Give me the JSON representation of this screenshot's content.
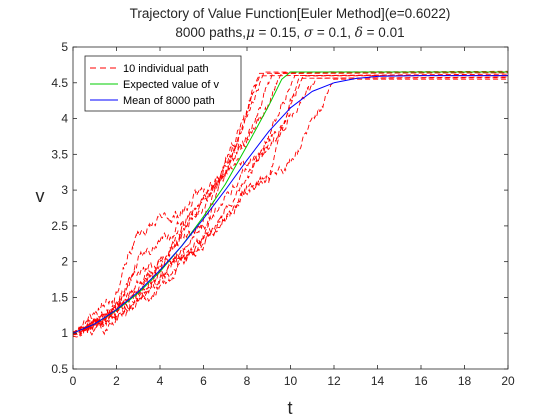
{
  "chart_data": {
    "type": "line",
    "title": "Trajectory of Value Function[Euler Method](e=0.6022)",
    "subtitle_parts": {
      "prefix": "8000 paths,",
      "mu_symbol": "μ",
      "mu_rest": " = 0.15, ",
      "sigma_symbol": "σ",
      "sigma_rest": " = 0.1, ",
      "delta_symbol": "δ",
      "delta_rest": " = 0.01"
    },
    "xlabel": "t",
    "ylabel": "v",
    "xlim": [
      0,
      20
    ],
    "ylim": [
      0.5,
      5
    ],
    "xticks": [
      "0",
      "2",
      "4",
      "6",
      "8",
      "10",
      "12",
      "14",
      "16",
      "18",
      "20"
    ],
    "yticks": [
      "0.5",
      "1",
      "1.5",
      "2",
      "2.5",
      "3",
      "3.5",
      "4",
      "4.5",
      "5"
    ],
    "grid": false,
    "legend_position": "top-left",
    "series": [
      {
        "name": "10 individual path",
        "color": "#ff0000",
        "style": "dashed",
        "paths": [
          {
            "seed": 11,
            "vol": 0.055,
            "anchors": [
              [
                0,
                1.0
              ],
              [
                2,
                1.35
              ],
              [
                4,
                2.0
              ],
              [
                6,
                2.6
              ],
              [
                7.5,
                3.6
              ],
              [
                8.6,
                4.65
              ]
            ],
            "end": 4.65
          },
          {
            "seed": 23,
            "vol": 0.06,
            "anchors": [
              [
                0,
                0.98
              ],
              [
                2,
                1.6
              ],
              [
                3,
                2.4
              ],
              [
                5,
                2.7
              ],
              [
                7,
                3.3
              ],
              [
                9,
                4.2
              ],
              [
                9.6,
                4.64
              ]
            ],
            "end": 4.64
          },
          {
            "seed": 37,
            "vol": 0.05,
            "anchors": [
              [
                0,
                0.95
              ],
              [
                2,
                1.3
              ],
              [
                4,
                1.9
              ],
              [
                6,
                2.9
              ],
              [
                7.5,
                3.4
              ],
              [
                8.5,
                3.4
              ],
              [
                10.2,
                4.6
              ]
            ],
            "end": 4.6
          },
          {
            "seed": 41,
            "vol": 0.05,
            "anchors": [
              [
                0,
                1.0
              ],
              [
                3,
                1.5
              ],
              [
                5,
                2.1
              ],
              [
                7,
                2.6
              ],
              [
                8,
                3.0
              ],
              [
                9,
                3.2
              ],
              [
                10.4,
                4.58
              ]
            ],
            "end": 4.58
          },
          {
            "seed": 53,
            "vol": 0.05,
            "anchors": [
              [
                0,
                1.02
              ],
              [
                2,
                1.4
              ],
              [
                4,
                1.9
              ],
              [
                6,
                2.2
              ],
              [
                8,
                3.0
              ],
              [
                10,
                3.4
              ],
              [
                11.5,
                4.2
              ],
              [
                12,
                4.55
              ]
            ],
            "end": 4.55
          },
          {
            "seed": 67,
            "vol": 0.055,
            "anchors": [
              [
                0,
                0.97
              ],
              [
                1.5,
                1.3
              ],
              [
                3,
                1.8
              ],
              [
                4,
                2.0
              ],
              [
                6,
                2.8
              ],
              [
                7.5,
                3.6
              ],
              [
                8.6,
                4.62
              ]
            ],
            "end": 4.62
          },
          {
            "seed": 71,
            "vol": 0.05,
            "anchors": [
              [
                0,
                1.0
              ],
              [
                2,
                1.25
              ],
              [
                4,
                1.7
              ],
              [
                6,
                2.3
              ],
              [
                7,
                3.4
              ],
              [
                8.8,
                4.66
              ]
            ],
            "end": 4.66
          },
          {
            "seed": 83,
            "vol": 0.05,
            "anchors": [
              [
                0,
                0.99
              ],
              [
                2,
                1.2
              ],
              [
                4,
                1.6
              ],
              [
                6,
                2.3
              ],
              [
                8,
                3.2
              ],
              [
                9.5,
                3.9
              ],
              [
                10.6,
                4.6
              ]
            ],
            "end": 4.6
          },
          {
            "seed": 97,
            "vol": 0.055,
            "anchors": [
              [
                0,
                1.0
              ],
              [
                2,
                1.35
              ],
              [
                3,
                2.0
              ],
              [
                5,
                2.5
              ],
              [
                6.5,
                3.0
              ],
              [
                8,
                3.7
              ],
              [
                9.2,
                4.64
              ]
            ],
            "end": 4.64
          },
          {
            "seed": 101,
            "vol": 0.05,
            "anchors": [
              [
                0,
                1.01
              ],
              [
                2,
                1.3
              ],
              [
                4,
                1.8
              ],
              [
                6,
                2.5
              ],
              [
                8,
                3.3
              ],
              [
                9,
                3.6
              ],
              [
                10,
                4.0
              ],
              [
                11.2,
                4.57
              ]
            ],
            "end": 4.57
          }
        ]
      },
      {
        "name": "Expected value of v",
        "color": "#00cc00",
        "style": "solid",
        "points": [
          [
            0,
            1.0
          ],
          [
            1,
            1.13
          ],
          [
            2,
            1.32
          ],
          [
            3,
            1.56
          ],
          [
            4,
            1.86
          ],
          [
            5,
            2.22
          ],
          [
            6,
            2.63
          ],
          [
            7,
            3.08
          ],
          [
            8,
            3.62
          ],
          [
            9,
            4.18
          ],
          [
            9.6,
            4.55
          ],
          [
            10,
            4.65
          ],
          [
            20,
            4.65
          ]
        ]
      },
      {
        "name": "Mean of 8000 path",
        "color": "#0000ff",
        "style": "solid",
        "points": [
          [
            0,
            1.0
          ],
          [
            1,
            1.13
          ],
          [
            2,
            1.33
          ],
          [
            3,
            1.58
          ],
          [
            4,
            1.88
          ],
          [
            5,
            2.22
          ],
          [
            6,
            2.6
          ],
          [
            7,
            3.0
          ],
          [
            8,
            3.42
          ],
          [
            9,
            3.82
          ],
          [
            10,
            4.15
          ],
          [
            11,
            4.38
          ],
          [
            12,
            4.5
          ],
          [
            13,
            4.56
          ],
          [
            14,
            4.59
          ],
          [
            16,
            4.6
          ],
          [
            20,
            4.6
          ]
        ]
      }
    ]
  }
}
